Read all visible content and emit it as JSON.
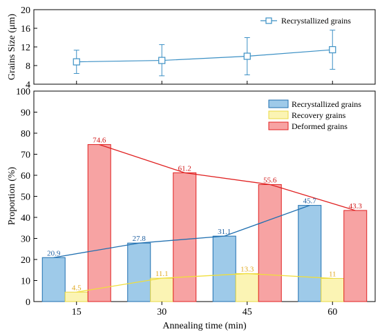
{
  "chart_data": [
    {
      "type": "line",
      "panel": "top",
      "title": "",
      "xlabel": "",
      "ylabel": "Grains Size (μm)",
      "x": [
        15,
        30,
        45,
        60
      ],
      "xlim": [
        7.5,
        67.5
      ],
      "ylim": [
        4,
        20
      ],
      "yticks": [
        "4",
        "8",
        "12",
        "16",
        "20"
      ],
      "grid": false,
      "legend_position": "top-right",
      "series": [
        {
          "name": "Recrystallized grains",
          "values": [
            8.8,
            9.1,
            10.0,
            11.4
          ],
          "error_low": [
            6.3,
            5.8,
            6.0,
            7.2
          ],
          "error_high": [
            11.3,
            12.5,
            14.0,
            15.6
          ],
          "color": "#3a8fc4",
          "marker": "open-square"
        }
      ]
    },
    {
      "type": "bar",
      "panel": "bottom",
      "title": "",
      "xlabel": "Annealing time (min)",
      "ylabel": "Proportion (%)",
      "categories": [
        "15",
        "30",
        "45",
        "60"
      ],
      "ylim": [
        0,
        100
      ],
      "yticks": [
        "0",
        "10",
        "20",
        "30",
        "40",
        "50",
        "60",
        "70",
        "80",
        "90",
        "100"
      ],
      "grid": false,
      "legend_position": "top-right",
      "series": [
        {
          "name": "Recrystallized grains",
          "values": [
            20.9,
            27.8,
            31.1,
            45.7
          ],
          "labels": [
            "20.9",
            "27.8",
            "31.1",
            "45.7"
          ],
          "fill": "#9ecae9",
          "stroke": "#1f6fb0",
          "line_color": "#1f6fb0",
          "label_color": "#1f5fa0"
        },
        {
          "name": "Recovery grains",
          "values": [
            4.5,
            11.1,
            13.3,
            11.0
          ],
          "labels": [
            "4.5",
            "11.1",
            "13.3",
            "11"
          ],
          "fill": "#fbf4b4",
          "stroke": "#e8d842",
          "line_color": "#f0de3a",
          "label_color": "#e0a820"
        },
        {
          "name": "Deformed grains",
          "values": [
            74.6,
            61.2,
            55.6,
            43.3
          ],
          "labels": [
            "74.6",
            "61.2",
            "55.6",
            "43.3"
          ],
          "fill": "#f7a3a3",
          "stroke": "#e02020",
          "line_color": "#e02020",
          "label_color": "#d01818"
        }
      ]
    }
  ]
}
